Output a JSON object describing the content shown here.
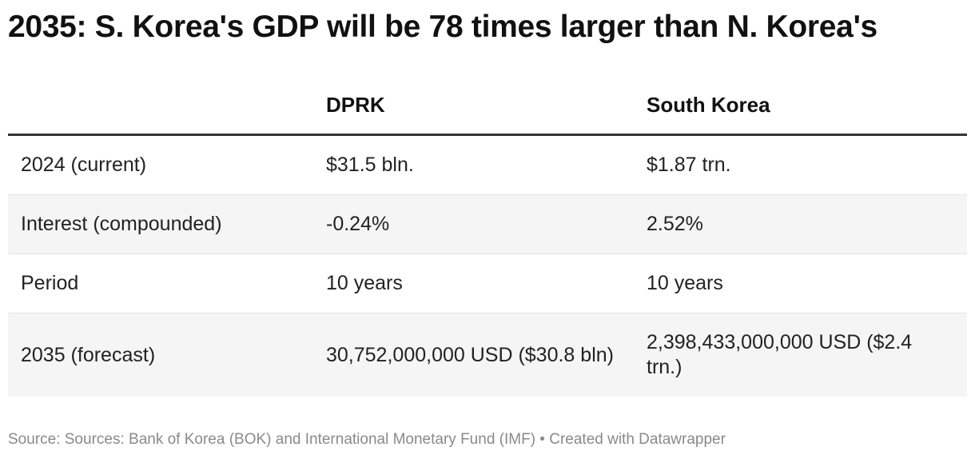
{
  "chart_data": {
    "type": "table",
    "title": "2035: S. Korea's GDP will be 78 times larger than N. Korea's",
    "columns": [
      "",
      "DPRK",
      "South Korea"
    ],
    "rows": [
      [
        "2024 (current)",
        "$31.5 bln.",
        "$1.87 trn."
      ],
      [
        "Interest (compounded)",
        "-0.24%",
        "2.52%"
      ],
      [
        "Period",
        "10 years",
        "10 years"
      ],
      [
        "2035 (forecast)",
        "30,752,000,000 USD ($30.8 bln)",
        "2,398,433,000,000 USD ($2.4 trn.)"
      ]
    ],
    "source": "Source: Sources: Bank of Korea (BOK) and International Monetary Fund (IMF) • Created with Datawrapper"
  }
}
